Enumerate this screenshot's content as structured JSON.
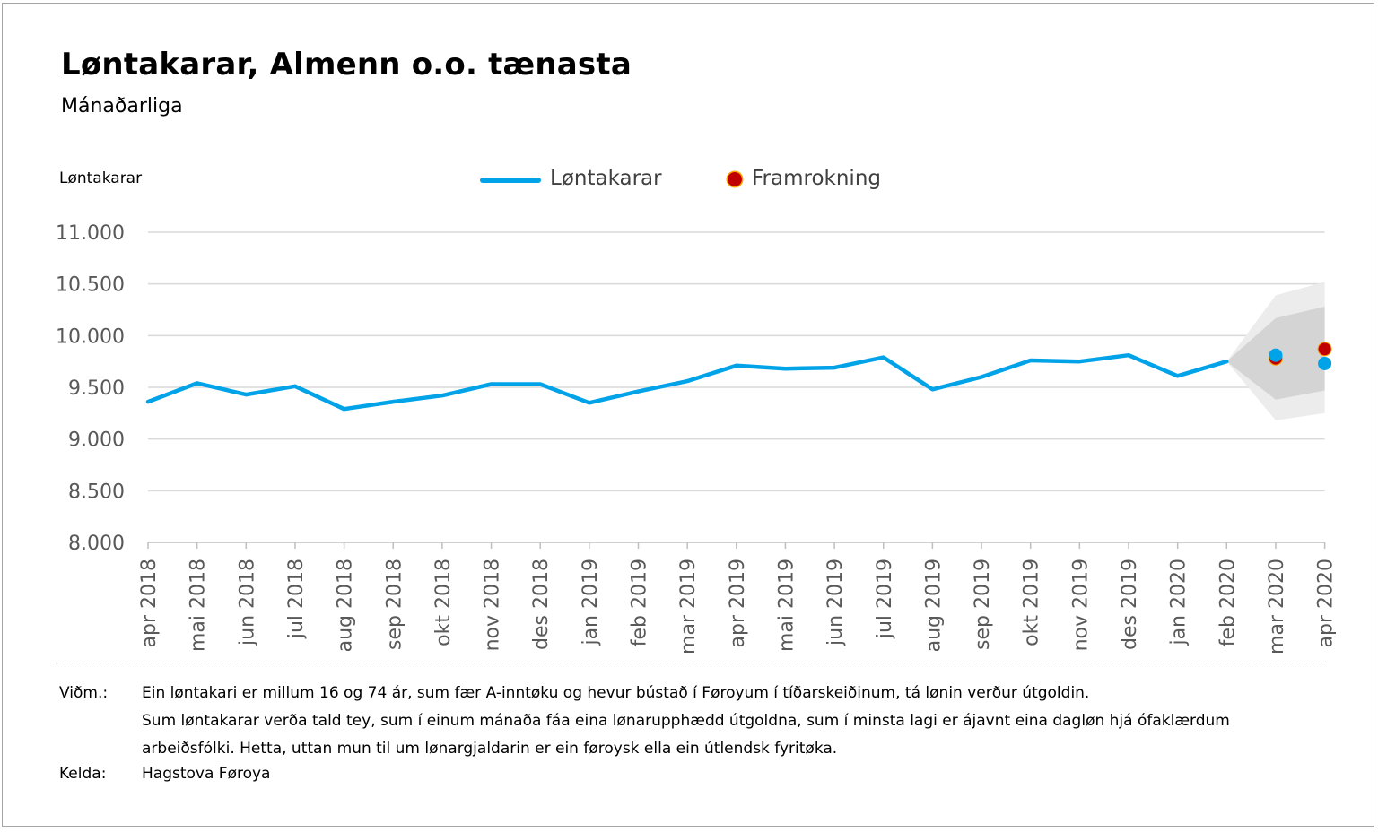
{
  "title": "Løntakarar, Almenn o.o. tænasta",
  "subtitle": "Mánaðarliga",
  "colors": {
    "series": "#00a2e8",
    "forecast": "#c00000",
    "forecast_outline": "#ffa500",
    "band_outer": "#ececec",
    "band_inner": "#d4d4d4",
    "grid": "#d9d9d9"
  },
  "chart_data": {
    "type": "line",
    "ylabel": "Løntakarar",
    "ylim": [
      8000,
      11000
    ],
    "yticks": [
      8000,
      8500,
      9000,
      9500,
      10000,
      10500,
      11000
    ],
    "ytick_labels": [
      "8.000",
      "8.500",
      "9.000",
      "9.500",
      "10.000",
      "10.500",
      "11.000"
    ],
    "categories": [
      "apr 2018",
      "mai 2018",
      "jun 2018",
      "jul 2018",
      "aug 2018",
      "sep 2018",
      "okt 2018",
      "nov 2018",
      "des 2018",
      "jan 2019",
      "feb 2019",
      "mar 2019",
      "apr 2019",
      "mai 2019",
      "jun 2019",
      "jul 2019",
      "aug 2019",
      "sep 2019",
      "okt 2019",
      "nov 2019",
      "des 2019",
      "jan 2020",
      "feb 2020",
      "mar 2020",
      "apr 2020"
    ],
    "series": [
      {
        "name": "Løntakarar",
        "values": [
          9360,
          9540,
          9430,
          9510,
          9290,
          9360,
          9420,
          9530,
          9530,
          9350,
          9460,
          9560,
          9710,
          9680,
          9690,
          9790,
          9480,
          9600,
          9760,
          9750,
          9810,
          9610,
          9750,
          9810,
          9730
        ]
      },
      {
        "name": "Framrokning",
        "values": [
          null,
          null,
          null,
          null,
          null,
          null,
          null,
          null,
          null,
          null,
          null,
          null,
          null,
          null,
          null,
          null,
          null,
          null,
          null,
          null,
          null,
          null,
          null,
          9780,
          9870
        ]
      }
    ],
    "forecast_band": {
      "start_index": 22,
      "outer": {
        "upper": [
          9750,
          10390,
          10520
        ],
        "lower": [
          9750,
          9180,
          9250
        ]
      },
      "inner": {
        "upper": [
          9750,
          10170,
          10280
        ],
        "lower": [
          9750,
          9380,
          9470
        ]
      }
    },
    "legend": {
      "position": "top-center",
      "series_label": "Løntakarar",
      "forecast_label": "Framrokning"
    }
  },
  "notes": {
    "label": "Viðm.:",
    "lines": [
      "Ein løntakari er millum 16 og 74 ár, sum fær A-inntøku og hevur bústað í Føroyum í tíðarskeiðinum, tá lønin verður útgoldin.",
      "Sum løntakarar verða tald tey, sum í einum mánaða fáa eina lønarupphædd útgoldna, sum í minsta lagi er ájavnt eina dagløn hjá ófaklærdum",
      "arbeiðsfólki. Hetta, uttan mun til um lønargjaldarin er ein føroysk ella ein útlendsk fyritøka."
    ],
    "source_label": "Kelda:",
    "source": "Hagstova Føroya"
  }
}
